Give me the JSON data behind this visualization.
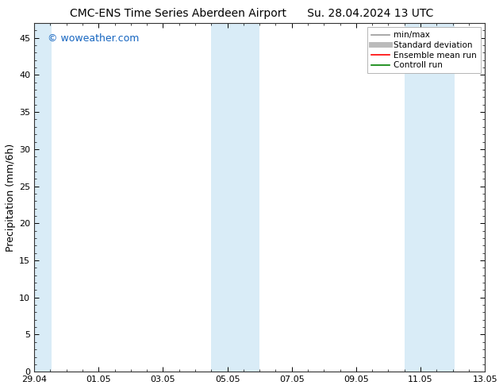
{
  "title_left": "CMC-ENS Time Series Aberdeen Airport",
  "title_right": "Su. 28.04.2024 13 UTC",
  "ylabel": "Precipitation (mm/6h)",
  "watermark": "© woweather.com",
  "watermark_color": "#1565C0",
  "background_color": "#ffffff",
  "plot_bg_color": "#ffffff",
  "ylim": [
    0,
    47
  ],
  "yticks": [
    0,
    5,
    10,
    15,
    20,
    25,
    30,
    35,
    40,
    45
  ],
  "xtick_labels": [
    "29.04",
    "01.05",
    "03.05",
    "05.05",
    "07.05",
    "09.05",
    "11.05",
    "13.05"
  ],
  "x_start": 0,
  "x_end": 14,
  "shaded_bands": [
    {
      "xmin": -0.05,
      "xmax": 0.55
    },
    {
      "xmin": 5.5,
      "xmax": 7.0
    },
    {
      "xmin": 11.5,
      "xmax": 13.05
    }
  ],
  "shaded_color": "#d9ecf7",
  "xtick_positions": [
    0,
    2,
    4,
    6,
    8,
    10,
    12,
    14
  ],
  "legend_entries": [
    {
      "label": "min/max",
      "color": "#999999",
      "lw": 1.2,
      "ls": "-"
    },
    {
      "label": "Standard deviation",
      "color": "#bbbbbb",
      "lw": 5,
      "ls": "-"
    },
    {
      "label": "Ensemble mean run",
      "color": "#ff0000",
      "lw": 1.2,
      "ls": "-"
    },
    {
      "label": "Controll run",
      "color": "#008000",
      "lw": 1.2,
      "ls": "-"
    }
  ],
  "title_fontsize": 10,
  "tick_fontsize": 8,
  "ylabel_fontsize": 9,
  "watermark_fontsize": 9,
  "legend_fontsize": 7.5
}
